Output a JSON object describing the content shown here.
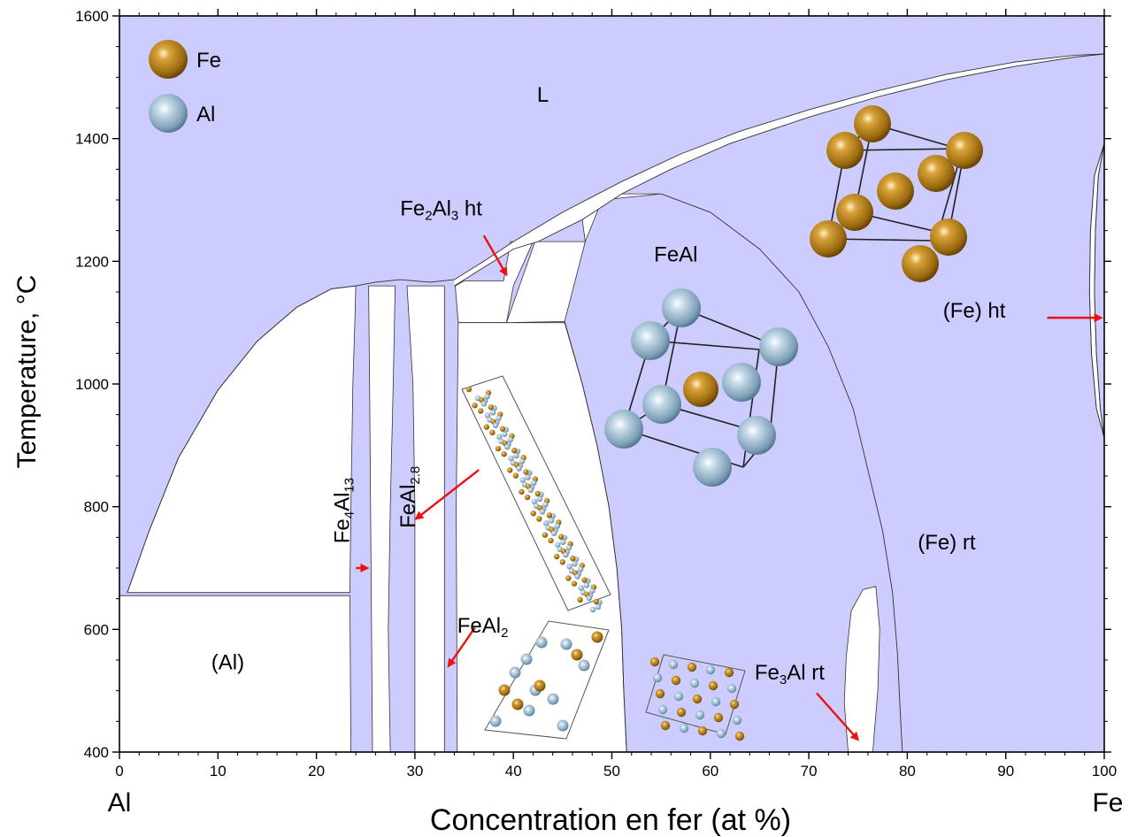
{
  "colors": {
    "phase_fill": "#ccccff",
    "boundary": "#333333",
    "arrow": "#ee1111",
    "fe_atom": "#c88a18",
    "al_atom": "#8fb4cc"
  },
  "legend": [
    {
      "label": "Fe",
      "icon": "fe-atom-icon"
    },
    {
      "label": "Al",
      "icon": "al-atom-icon"
    }
  ],
  "chart_data": {
    "type": "phase-diagram",
    "title": "",
    "xlabel": "Concentration en fer (at %)",
    "ylabel": "Temperature, °C",
    "xlim": [
      0,
      100
    ],
    "ylim": [
      400,
      1600
    ],
    "x_ticks": [
      "0",
      "10",
      "20",
      "30",
      "40",
      "50",
      "60",
      "70",
      "80",
      "90",
      "100"
    ],
    "y_ticks": [
      "400",
      "600",
      "800",
      "1000",
      "1200",
      "1400",
      "1600"
    ],
    "x_end_labels": {
      "left": "Al",
      "right": "Fe"
    },
    "phases": [
      {
        "label": "L",
        "x": 43,
        "y": 1460
      },
      {
        "label": "FeAl",
        "x": 56.5,
        "y": 1200
      },
      {
        "label": "(Fe) rt",
        "x": 84,
        "y": 730
      },
      {
        "label": "(Al)",
        "x": 11,
        "y": 535
      },
      {
        "label": "(Fe) ht",
        "x": 86.8,
        "y": 1108
      }
    ],
    "compound_labels": [
      {
        "base": "Fe",
        "sub": "2",
        "base2": "Al",
        "sub2": "3",
        "suffix": " ht",
        "x": 28.5,
        "y": 1275
      },
      {
        "base": "Fe",
        "sub": "4",
        "base2": "Al",
        "sub2": "13",
        "suffix": "",
        "x": 23.3,
        "y": 740,
        "vertical": true
      },
      {
        "base": "FeAl",
        "sub": "2.8",
        "base2": "",
        "sub2": "",
        "suffix": "",
        "x": 30.0,
        "y": 765,
        "vertical": true
      },
      {
        "base": "FeAl",
        "sub": "2",
        "base2": "",
        "sub2": "",
        "suffix": "",
        "x": 34.3,
        "y": 595
      },
      {
        "base": "Fe",
        "sub": "3",
        "base2": "Al",
        "sub2": "",
        "suffix": " rt",
        "x": 64.5,
        "y": 518
      }
    ],
    "arrows": [
      {
        "from": [
          37.0,
          1242
        ],
        "to": [
          39.3,
          1178
        ]
      },
      {
        "from": [
          24.0,
          700
        ],
        "to": [
          25.2,
          700
        ]
      },
      {
        "from": [
          36.5,
          860
        ],
        "to": [
          30.1,
          780
        ]
      },
      {
        "from": [
          36.1,
          603
        ],
        "to": [
          33.4,
          540
        ]
      },
      {
        "from": [
          70.8,
          496
        ],
        "to": [
          75.0,
          420
        ]
      },
      {
        "from": [
          94.2,
          1108
        ],
        "to": [
          99.7,
          1108
        ]
      }
    ],
    "boundaries": {
      "liquidus": [
        [
          0.8,
          660
        ],
        [
          3,
          760
        ],
        [
          6,
          880
        ],
        [
          10,
          990
        ],
        [
          14,
          1070
        ],
        [
          18,
          1125
        ],
        [
          21.5,
          1155
        ],
        [
          24,
          1160
        ],
        [
          26,
          1166
        ],
        [
          28.5,
          1170
        ],
        [
          31.5,
          1166
        ],
        [
          34,
          1170
        ],
        [
          37,
          1200
        ],
        [
          40,
          1232
        ],
        [
          45,
          1280
        ],
        [
          51,
          1330
        ],
        [
          57,
          1375
        ],
        [
          63,
          1412
        ],
        [
          70,
          1447
        ],
        [
          77,
          1478
        ],
        [
          84,
          1505
        ],
        [
          91,
          1525
        ],
        [
          97,
          1536
        ],
        [
          100,
          1538
        ]
      ],
      "solidus": [
        [
          34,
          1160
        ],
        [
          37,
          1190
        ],
        [
          40,
          1220
        ],
        [
          42.5,
          1232
        ],
        [
          47,
          1268
        ],
        [
          51,
          1310
        ],
        [
          56,
          1350
        ],
        [
          62,
          1392
        ],
        [
          70,
          1435
        ],
        [
          77,
          1468
        ],
        [
          84,
          1496
        ],
        [
          91,
          1518
        ],
        [
          97,
          1533
        ],
        [
          100,
          1538
        ]
      ],
      "feal_boundary": [
        [
          45.2,
          1102
        ],
        [
          47,
          1000
        ],
        [
          48.5,
          900
        ],
        [
          49.7,
          800
        ],
        [
          50.5,
          700
        ],
        [
          51,
          600
        ],
        [
          51.2,
          500
        ],
        [
          51.5,
          400
        ]
      ],
      "fe_ht_loop_left": [
        [
          100,
          1392
        ],
        [
          99,
          1340
        ],
        [
          98.6,
          1250
        ],
        [
          98.5,
          1150
        ],
        [
          98.7,
          1050
        ],
        [
          99.2,
          960
        ],
        [
          100,
          912
        ]
      ],
      "fe_ht_loop_right": [
        [
          100,
          1392
        ],
        [
          99.4,
          1340
        ],
        [
          99.1,
          1250
        ],
        [
          99.0,
          1150
        ],
        [
          99.2,
          1050
        ],
        [
          99.6,
          960
        ],
        [
          100,
          912
        ]
      ],
      "order_disorder": [
        [
          55,
          1310
        ],
        [
          60,
          1280
        ],
        [
          65,
          1220
        ],
        [
          69,
          1150
        ],
        [
          72,
          1060
        ],
        [
          74.5,
          960
        ],
        [
          76,
          860
        ],
        [
          77.5,
          760
        ],
        [
          78.5,
          660
        ],
        [
          79,
          560
        ],
        [
          79.3,
          460
        ],
        [
          79.5,
          400
        ]
      ]
    },
    "white_regions": [
      [
        [
          0.8,
          660
        ],
        [
          3,
          760
        ],
        [
          6,
          880
        ],
        [
          10,
          990
        ],
        [
          14,
          1070
        ],
        [
          18,
          1125
        ],
        [
          21.5,
          1155
        ],
        [
          24,
          1160
        ],
        [
          23.9,
          1100
        ],
        [
          23.7,
          1000
        ],
        [
          23.5,
          800
        ],
        [
          23.4,
          660
        ]
      ],
      [
        [
          0,
          655
        ],
        [
          23.4,
          655
        ],
        [
          23.5,
          400
        ],
        [
          0,
          400
        ]
      ],
      [
        [
          25.3,
          1160
        ],
        [
          28.0,
          1160
        ],
        [
          27.8,
          1000
        ],
        [
          27.5,
          800
        ],
        [
          27.3,
          600
        ],
        [
          27.5,
          400
        ],
        [
          25.7,
          400
        ],
        [
          25.6,
          600
        ],
        [
          25.5,
          800
        ],
        [
          25.4,
          1000
        ]
      ],
      [
        [
          29.2,
          1160
        ],
        [
          33.0,
          1160
        ],
        [
          33.0,
          400
        ],
        [
          30.0,
          400
        ],
        [
          30.0,
          800
        ],
        [
          29.8,
          1000
        ]
      ],
      [
        [
          34.1,
          1160
        ],
        [
          35.0,
          1168
        ],
        [
          39.0,
          1168
        ],
        [
          39.7,
          1232
        ],
        [
          42.0,
          1232
        ],
        [
          40,
          1160
        ],
        [
          39.3,
          1100
        ],
        [
          34.4,
          1100
        ]
      ],
      [
        [
          34.4,
          1100
        ],
        [
          39.3,
          1100
        ],
        [
          45.2,
          1100
        ],
        [
          47,
          1000
        ],
        [
          48.5,
          900
        ],
        [
          49.7,
          800
        ],
        [
          50.5,
          700
        ],
        [
          51,
          600
        ],
        [
          51.2,
          500
        ],
        [
          51.5,
          400
        ],
        [
          34.3,
          400
        ],
        [
          34.2,
          800
        ]
      ],
      [
        [
          39.3,
          1100
        ],
        [
          42.2,
          1232
        ],
        [
          47.3,
          1232
        ],
        [
          45.2,
          1102
        ]
      ],
      [
        [
          47.3,
          1232
        ],
        [
          49.0,
          1300
        ],
        [
          55,
          1310
        ],
        [
          51,
          1310
        ],
        [
          47,
          1268
        ]
      ],
      [
        [
          73.8,
          555
        ],
        [
          74.3,
          630
        ],
        [
          75.5,
          665
        ],
        [
          76.8,
          670
        ],
        [
          77.2,
          600
        ],
        [
          77,
          500
        ],
        [
          76.5,
          400
        ],
        [
          74.0,
          400
        ],
        [
          73.6,
          480
        ]
      ]
    ]
  }
}
